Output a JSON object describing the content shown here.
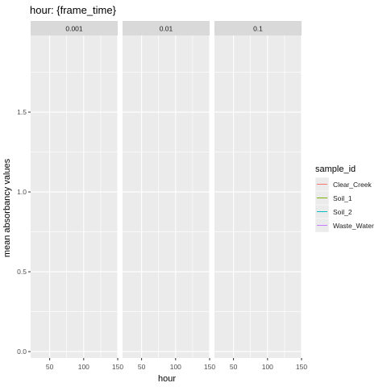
{
  "chart_data": {
    "type": "line",
    "title": "hour: {frame_time}",
    "xlabel": "hour",
    "ylabel": "mean absorbancy values",
    "facets": [
      "0.001",
      "0.01",
      "0.1"
    ],
    "x_ticks": [
      50,
      100,
      150
    ],
    "xlim": [
      22,
      150
    ],
    "y_ticks": [
      0.0,
      0.5,
      1.0,
      1.5
    ],
    "y_tick_labels": [
      "0.0",
      "0.5",
      "1.0",
      "1.5"
    ],
    "ylim": [
      -0.04,
      1.98
    ],
    "grid": true,
    "legend_position": "right",
    "legend": {
      "title": "sample_id",
      "items": [
        {
          "label": "Clear_Creek",
          "color": "#F8766D"
        },
        {
          "label": "Soil_1",
          "color": "#7CAE00"
        },
        {
          "label": "Soil_2",
          "color": "#00BFC4"
        },
        {
          "label": "Waste_Water",
          "color": "#C77CFF"
        }
      ]
    },
    "series": []
  },
  "colors": {
    "panel_bg": "#EBEBEB",
    "strip_bg": "#D9D9D9",
    "grid": "#FFFFFF",
    "axis_text": "#4D4D4D",
    "axis_title": "#000000"
  }
}
